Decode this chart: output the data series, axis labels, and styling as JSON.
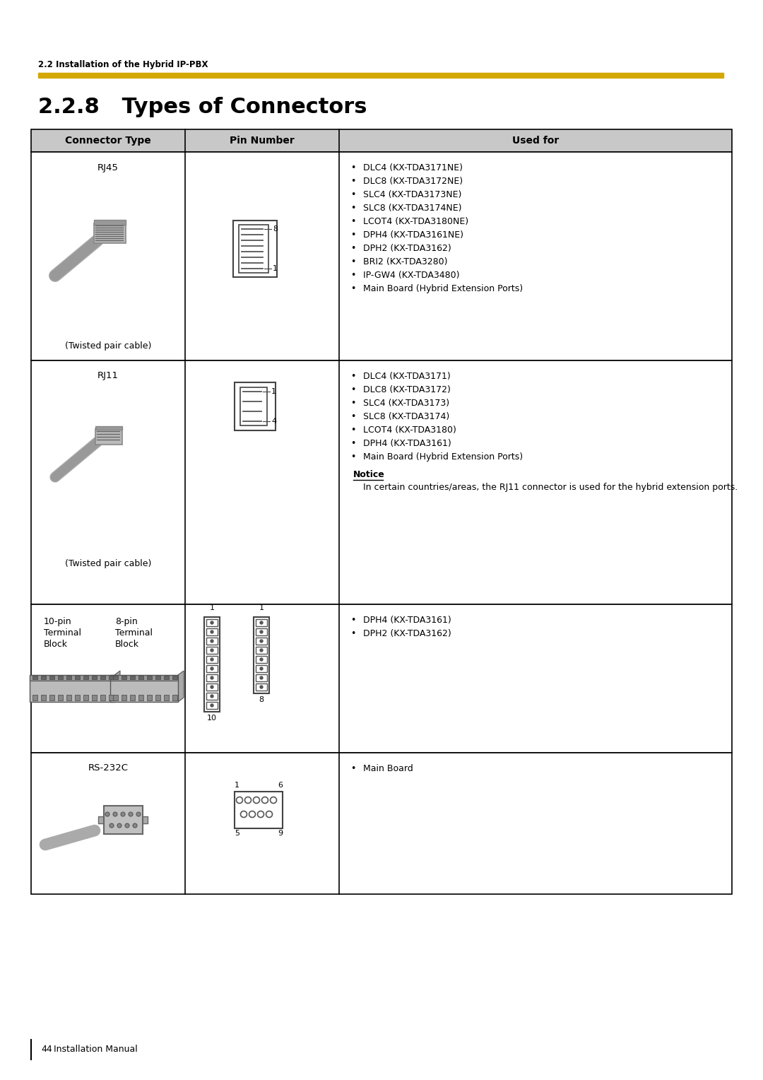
{
  "page_bg": "#ffffff",
  "top_label": "2.2 Installation of the Hybrid IP-PBX",
  "gold_bar_color": "#D4A800",
  "section_title": "2.2.8   Types of Connectors",
  "table_header": [
    "Connector Type",
    "Pin Number",
    "Used for"
  ],
  "header_bg": "#c8c8c8",
  "rows": [
    {
      "connector_type_label": "RJ45",
      "connector_type_sub": "(Twisted pair cable)",
      "pin_top": "8",
      "pin_bottom": "1",
      "pin_contacts": 8,
      "used_for": [
        "DLC4 (KX-TDA3171NE)",
        "DLC8 (KX-TDA3172NE)",
        "SLC4 (KX-TDA3173NE)",
        "SLC8 (KX-TDA3174NE)",
        "LCOT4 (KX-TDA3180NE)",
        "DPH4 (KX-TDA3161NE)",
        "DPH2 (KX-TDA3162)",
        "BRI2 (KX-TDA3280)",
        "IP-GW4 (KX-TDA3480)",
        "Main Board (Hybrid Extension Ports)"
      ],
      "notice": null
    },
    {
      "connector_type_label": "RJ11",
      "connector_type_sub": "(Twisted pair cable)",
      "pin_top": "1",
      "pin_bottom": "4",
      "pin_contacts": 4,
      "used_for": [
        "DLC4 (KX-TDA3171)",
        "DLC8 (KX-TDA3172)",
        "SLC4 (KX-TDA3173)",
        "SLC8 (KX-TDA3174)",
        "LCOT4 (KX-TDA3180)",
        "DPH4 (KX-TDA3161)",
        "Main Board (Hybrid Extension Ports)"
      ],
      "notice": "In certain countries/areas, the RJ11 connector is used for the hybrid extension ports."
    },
    {
      "connector_type_label_line1": "10-pin",
      "connector_type_label_line2": "8-pin",
      "connector_type_label_line3": "Terminal",
      "connector_type_label_line4": "Terminal",
      "connector_type_label_line5": "Block",
      "connector_type_label_line6": "Block",
      "connector_type_sub": null,
      "used_for": [
        "DPH4 (KX-TDA3161)",
        "DPH2 (KX-TDA3162)"
      ],
      "notice": null
    },
    {
      "connector_type_label": "RS-232C",
      "connector_type_sub": null,
      "used_for": [
        "Main Board"
      ],
      "notice": null
    }
  ],
  "footer_page": "44",
  "footer_text": "Installation Manual"
}
